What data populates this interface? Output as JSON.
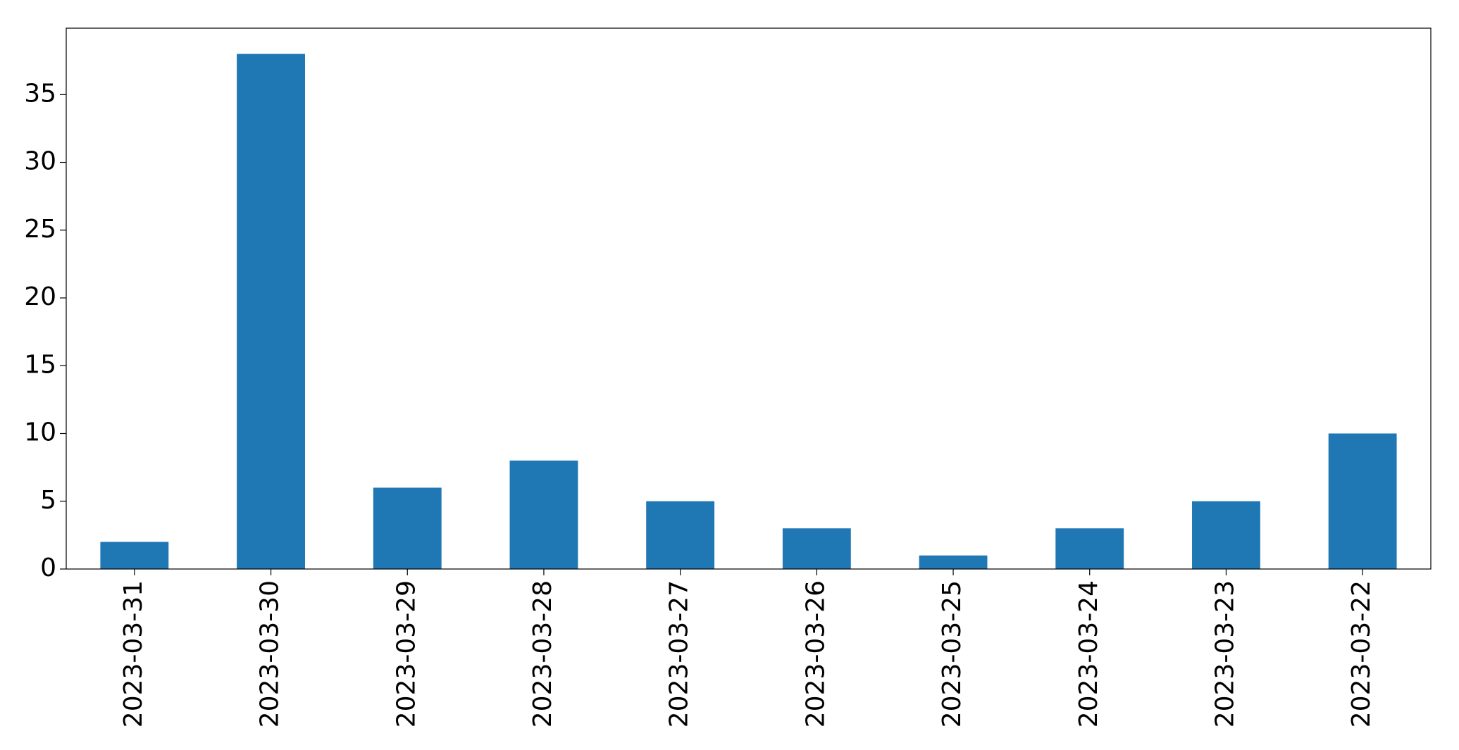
{
  "chart_data": {
    "type": "bar",
    "categories": [
      "2023-03-31",
      "2023-03-30",
      "2023-03-29",
      "2023-03-28",
      "2023-03-27",
      "2023-03-26",
      "2023-03-25",
      "2023-03-24",
      "2023-03-23",
      "2023-03-22"
    ],
    "values": [
      2,
      38,
      6,
      8,
      5,
      3,
      1,
      3,
      5,
      10
    ],
    "color": "#1f77b4",
    "ylim": [
      0,
      39.9
    ],
    "yticks": [
      0,
      5,
      10,
      15,
      20,
      25,
      30,
      35
    ],
    "grid": false
  }
}
